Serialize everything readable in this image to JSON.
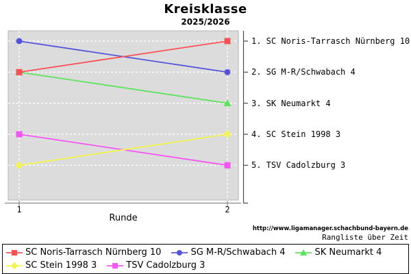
{
  "page": {
    "title": "Kreisklasse",
    "subtitle": "2025/2026",
    "source_url": "http://www.ligamanager.schachbund-bayern.de",
    "caption": "Rangliste über Zeit"
  },
  "chart_data": {
    "type": "line",
    "title": "Kreisklasse",
    "subtitle": "2025/2026",
    "xlabel": "Runde",
    "x": [
      1,
      2
    ],
    "x_tick_labels": [
      "1",
      "2"
    ],
    "y_axis": "Tabellenplatz (Rang), 1 = oben, Achse invertiert",
    "ylim": [
      1,
      5
    ],
    "grid": true,
    "legend_position": "bottom",
    "series": [
      {
        "name": "SC Noris-Tarrasch Nürnberg 10",
        "color": "#fa5153",
        "marker": "square",
        "ranks_by_round": [
          2,
          1
        ]
      },
      {
        "name": "SG M-R/Schwabach 4",
        "color": "#5254da",
        "marker": "circle",
        "ranks_by_round": [
          1,
          2
        ]
      },
      {
        "name": "SK Neumarkt 4",
        "color": "#5ce45c",
        "marker": "triangle",
        "ranks_by_round": [
          2,
          3
        ]
      },
      {
        "name": "SC Stein 1998 3",
        "color": "#f4f451",
        "marker": "diamond",
        "ranks_by_round": [
          5,
          4
        ]
      },
      {
        "name": "TSV Cadolzburg 3",
        "color": "#f455f4",
        "marker": "square",
        "ranks_by_round": [
          4,
          5
        ]
      }
    ],
    "right_axis_labels": [
      "1. SC Noris-Tarrasch Nürnberg 10",
      "2. SG M-R/Schwabach 4",
      "3. SK Neumarkt 4",
      "4. SC Stein 1998 3",
      "5. TSV Cadolzburg 3"
    ]
  },
  "colors": {
    "page_background": "#ffffff",
    "plot_background": "#dcdcdc",
    "plot_border": "#b4b4b4",
    "grid": "#ffffff",
    "x_axis": "#8a8a8a",
    "right_axis": "#4a4a4a",
    "legend_border": "#000000",
    "text": "#000000"
  }
}
